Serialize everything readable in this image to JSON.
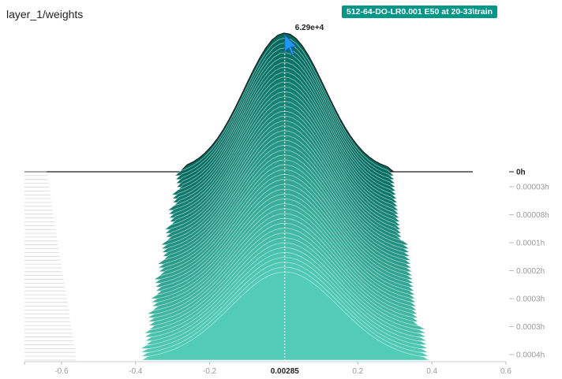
{
  "card": {
    "title": "layer_1/weights",
    "run_tag": "512-64-DO-LR0.001 E50 at 20-33\\train",
    "run_tag_color": "#009688",
    "peak_label": "6.29e+4",
    "cursor_value": "0.00285"
  },
  "chart_data": {
    "type": "area",
    "title": "layer_1/weights",
    "xlim": [
      -0.7,
      0.6
    ],
    "x_ticks": [
      -0.6,
      -0.4,
      -0.2,
      0.2,
      0.4,
      0.6
    ],
    "x_tick_labels": [
      "-0.6",
      "-0.4",
      "-0.2",
      "0.2",
      "0.4",
      "0.6"
    ],
    "y_ticks": [
      "0h",
      "0.00003h",
      "0.00008h",
      "0.0001h",
      "0.0002h",
      "0.0003h",
      "0.0003h",
      "0.0004h"
    ],
    "slice_count": 50,
    "first_slice_peak": 62900,
    "last_slice_peak": 40000,
    "first_slice_halfwidth": 0.28,
    "last_slice_halfwidth": 0.38,
    "center": 0.00285,
    "color_front": "#52ccb7",
    "color_back": "#00695c",
    "grid": false,
    "legend": "none"
  }
}
